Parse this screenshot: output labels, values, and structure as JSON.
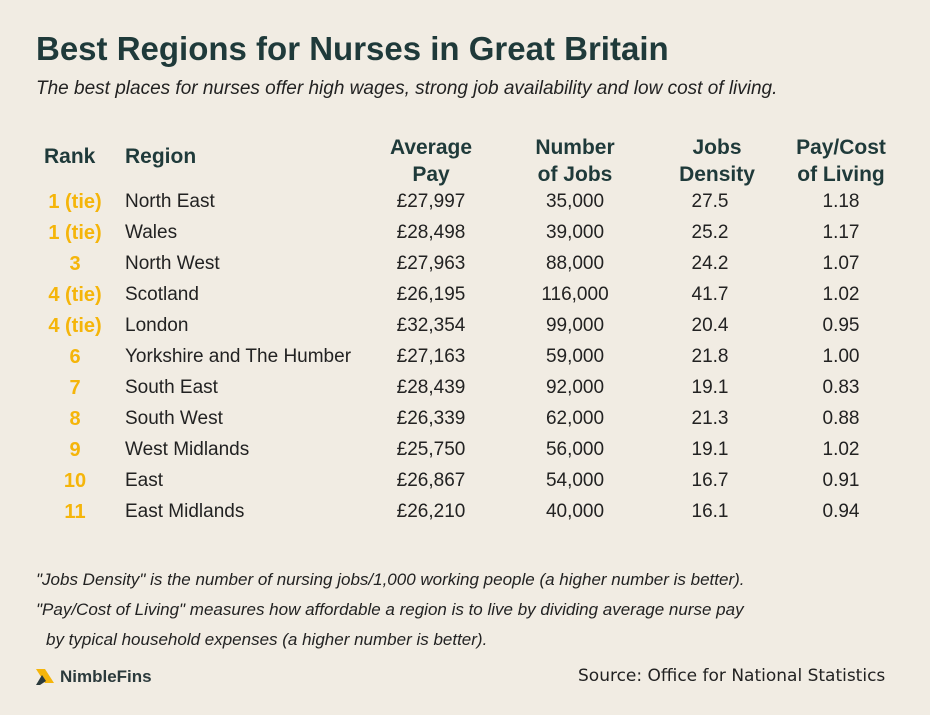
{
  "chart_data": {
    "type": "table",
    "title": "Best Regions for Nurses in Great Britain",
    "subtitle": "The best places for nurses offer high wages, strong job availability and low cost of living.",
    "columns": {
      "rank": "Rank",
      "region": "Region",
      "pay": [
        "Average",
        "Pay"
      ],
      "jobs": [
        "Number",
        "of Jobs"
      ],
      "density": [
        "Jobs",
        "Density"
      ],
      "pcl": [
        "Pay/Cost",
        "of Living"
      ]
    },
    "rows": [
      {
        "rank": "1 (tie)",
        "region": "North East",
        "pay": "£27,997",
        "jobs": "35,000",
        "density": "27.5",
        "pcl": "1.18"
      },
      {
        "rank": "1 (tie)",
        "region": "Wales",
        "pay": "£28,498",
        "jobs": "39,000",
        "density": "25.2",
        "pcl": "1.17"
      },
      {
        "rank": "3",
        "region": "North West",
        "pay": "£27,963",
        "jobs": "88,000",
        "density": "24.2",
        "pcl": "1.07"
      },
      {
        "rank": "4 (tie)",
        "region": "Scotland",
        "pay": "£26,195",
        "jobs": "116,000",
        "density": "41.7",
        "pcl": "1.02"
      },
      {
        "rank": "4 (tie)",
        "region": "London",
        "pay": "£32,354",
        "jobs": "99,000",
        "density": "20.4",
        "pcl": "0.95"
      },
      {
        "rank": "6",
        "region": "Yorkshire and The Humber",
        "pay": "£27,163",
        "jobs": "59,000",
        "density": "21.8",
        "pcl": "1.00"
      },
      {
        "rank": "7",
        "region": "South East",
        "pay": "£28,439",
        "jobs": "92,000",
        "density": "19.1",
        "pcl": "0.83"
      },
      {
        "rank": "8",
        "region": "South West",
        "pay": "£26,339",
        "jobs": "62,000",
        "density": "21.3",
        "pcl": "0.88"
      },
      {
        "rank": "9",
        "region": "West Midlands",
        "pay": "£25,750",
        "jobs": "56,000",
        "density": "19.1",
        "pcl": "1.02"
      },
      {
        "rank": "10",
        "region": "East",
        "pay": "£26,867",
        "jobs": "54,000",
        "density": "16.7",
        "pcl": "0.91"
      },
      {
        "rank": "11",
        "region": "East Midlands",
        "pay": "£26,210",
        "jobs": "40,000",
        "density": "16.1",
        "pcl": "0.94"
      }
    ],
    "notes": [
      "\"Jobs Density\" is the number of nursing jobs/1,000 working people (a higher number is better).",
      "\"Pay/Cost of Living\" measures how affordable a region is to live by dividing average nurse pay",
      "by typical household expenses (a higher number is better)."
    ],
    "source": "Source: Office for National Statistics"
  },
  "brand": {
    "name": "NimbleFins",
    "icon": "nimblefins-logo-icon"
  },
  "colors": {
    "background": "#f1ece3",
    "title": "#1f3a3a",
    "rank_accent": "#f5b50a"
  }
}
